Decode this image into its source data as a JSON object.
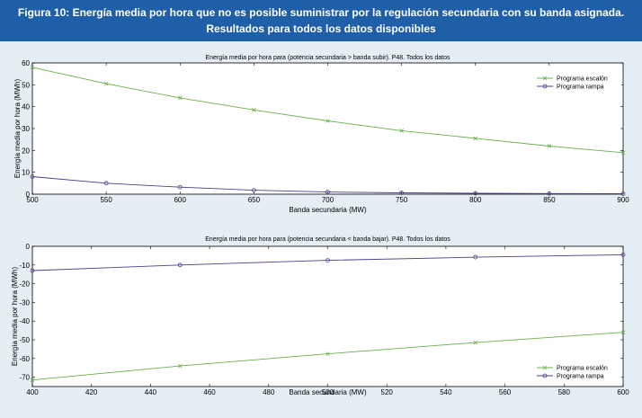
{
  "figure": {
    "title_line1": "Figura 10: Energía media por hora que no es posible suministrar por la regulación secundaria con su banda asignada.",
    "title_line2": "Resultados para todos los datos disponibles"
  },
  "colors": {
    "header_bg": "#1f5fa8",
    "page_bg": "#e6eef5",
    "escalon": "#6ab04c",
    "rampa": "#4b3f8c"
  },
  "chart_data": [
    {
      "type": "line",
      "title": "Energía media por hora para (potencia secundaria > banda subir). P48. Todos los datos",
      "xlabel": "Banda secundaria (MW)",
      "ylabel": "Energía media por hora (MWh)",
      "xlim": [
        500,
        900
      ],
      "ylim": [
        0,
        60
      ],
      "xticks": [
        500,
        550,
        600,
        650,
        700,
        750,
        800,
        850,
        900
      ],
      "yticks": [
        0,
        10,
        20,
        30,
        40,
        50,
        60
      ],
      "legend_position": "top-right",
      "series": [
        {
          "name": "Programa escalón",
          "color": "#6ab04c",
          "marker": "x",
          "x": [
            500,
            550,
            600,
            650,
            700,
            750,
            800,
            850,
            900
          ],
          "values": [
            58,
            50.5,
            44,
            38.5,
            33.5,
            29,
            25.5,
            22,
            19
          ]
        },
        {
          "name": "Programa rampa",
          "color": "#4b3f8c",
          "marker": "o",
          "x": [
            500,
            550,
            600,
            650,
            700,
            750,
            800,
            850,
            900
          ],
          "values": [
            8,
            5,
            3.2,
            1.8,
            1.0,
            0.6,
            0.4,
            0.3,
            0.2
          ]
        }
      ]
    },
    {
      "type": "line",
      "title": "Energía media por hora para (potencia secundaria < banda bajar). P48. Todos los datos",
      "xlabel": "Banda secundaria (MW)",
      "ylabel": "Energía media por hora (MWh)",
      "xlim": [
        400,
        600
      ],
      "ylim": [
        -75,
        0
      ],
      "xticks": [
        400,
        420,
        440,
        460,
        480,
        500,
        520,
        540,
        560,
        580,
        600
      ],
      "yticks": [
        -70,
        -60,
        -50,
        -40,
        -30,
        -20,
        -10,
        0
      ],
      "yticklabels": [
        "-70",
        "-60",
        "-50",
        "-40",
        "-30",
        "-20",
        "-10",
        "0"
      ],
      "legend_position": "bottom-right",
      "series": [
        {
          "name": "Programa escalón",
          "color": "#6ab04c",
          "marker": "x",
          "x": [
            400,
            450,
            500,
            550,
            600
          ],
          "values": [
            -71.5,
            -64,
            -57.5,
            -51.5,
            -46
          ]
        },
        {
          "name": "Programa rampa",
          "color": "#4b3f8c",
          "marker": "o",
          "x": [
            400,
            450,
            500,
            550,
            600
          ],
          "values": [
            -13,
            -10,
            -7.5,
            -5.8,
            -4.5
          ]
        }
      ]
    }
  ]
}
